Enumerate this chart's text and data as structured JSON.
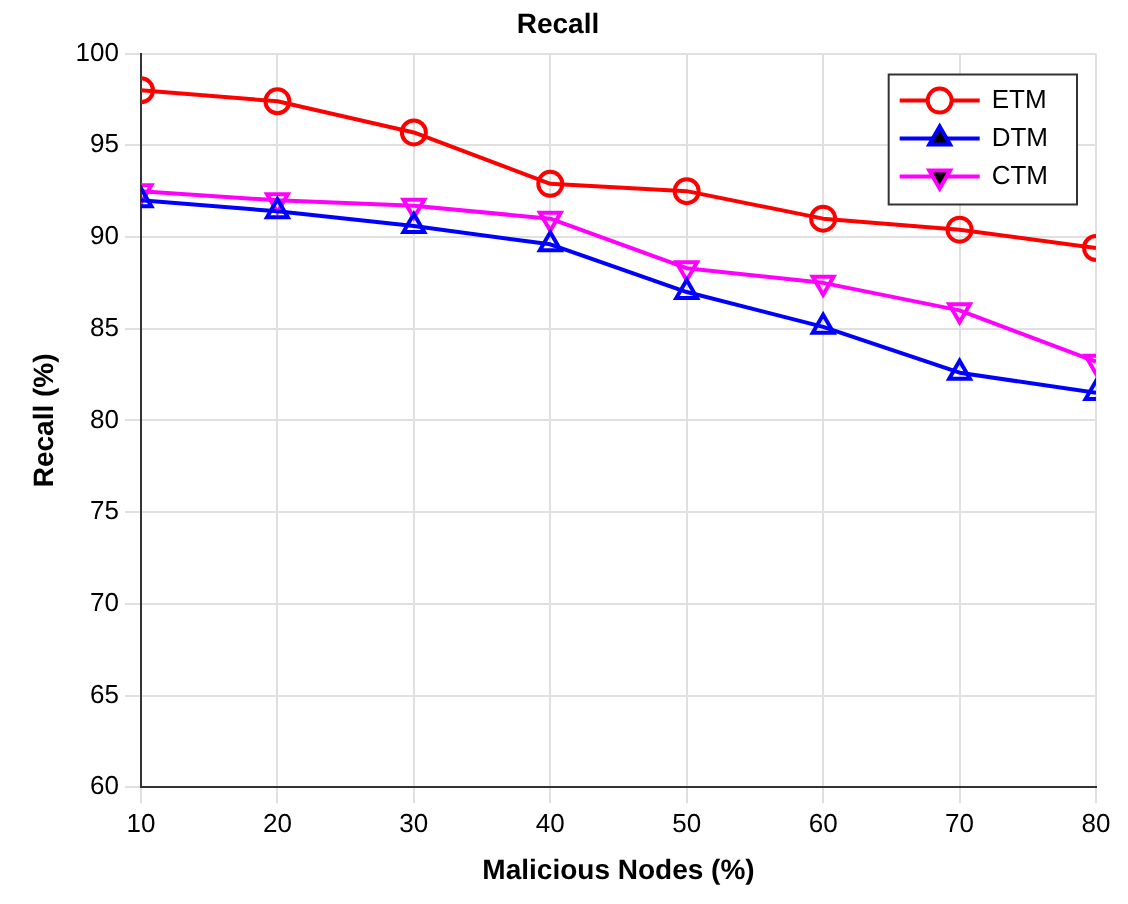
{
  "chart_data": {
    "type": "line",
    "title": "Recall",
    "xlabel": "Malicious Nodes (%)",
    "ylabel": "Recall (%)",
    "x": [
      10,
      20,
      30,
      40,
      50,
      60,
      70,
      80
    ],
    "series": [
      {
        "name": "ETM",
        "color": "#ff0000",
        "marker": "circle",
        "values": [
          98.0,
          97.4,
          95.7,
          92.9,
          92.5,
          91.0,
          90.4,
          89.4
        ]
      },
      {
        "name": "DTM",
        "color": "#0000ff",
        "marker": "triangle",
        "values": [
          92.0,
          91.4,
          90.6,
          89.6,
          87.0,
          85.1,
          82.6,
          81.5
        ]
      },
      {
        "name": "CTM",
        "color": "#ff00ff",
        "marker": "triangle-down",
        "values": [
          92.5,
          92.0,
          91.7,
          91.0,
          88.3,
          87.5,
          86.0,
          83.2
        ]
      }
    ],
    "xlim": [
      10,
      80
    ],
    "xticks": [
      10,
      20,
      30,
      40,
      50,
      60,
      70,
      80
    ],
    "ylim": [
      60,
      100
    ],
    "yticks": [
      60,
      65,
      70,
      75,
      80,
      85,
      90,
      95,
      100
    ],
    "grid": true,
    "legend": "top right",
    "line_style": "solid"
  }
}
